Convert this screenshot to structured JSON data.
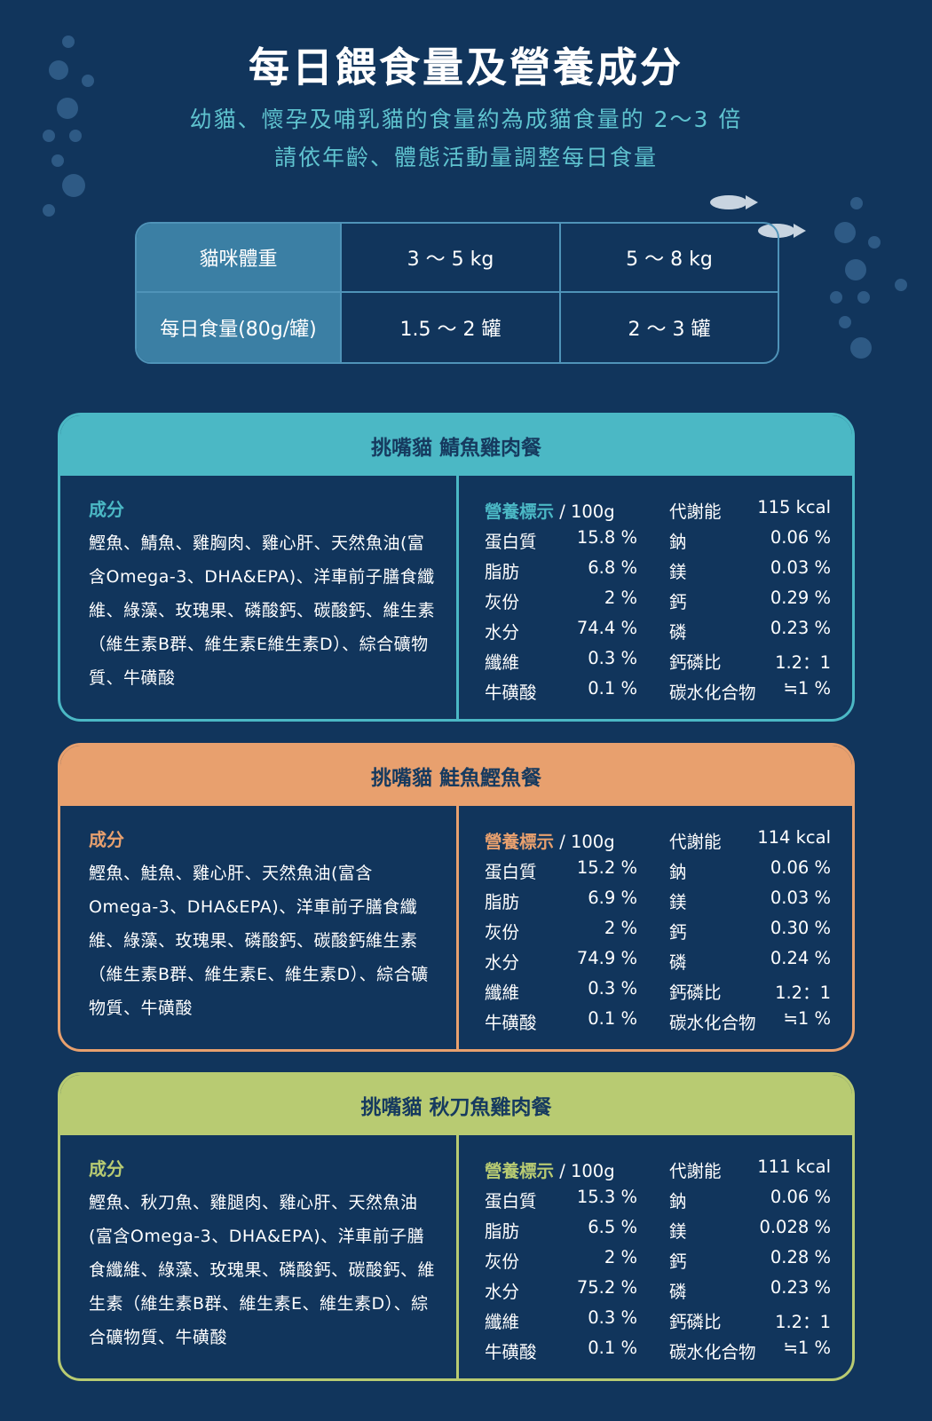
{
  "title": "每日餵食量及營養成分",
  "subtitle_1": "幼貓、懷孕及哺乳貓的食量約為成貓食量的 2～3 倍",
  "subtitle_2": "請依年齡、體態活動量調整每日食量",
  "feeding_table": {
    "header": [
      "貓咪體重",
      "3 ～ 5 kg",
      "5 ～ 8 kg"
    ],
    "row": [
      "每日食量(80g/罐)",
      "1.5 ～ 2 罐",
      "2 ～ 3 罐"
    ]
  },
  "colors": {
    "teal": "#4bb8c5",
    "orange": "#e8a06e",
    "green": "#b8cb72"
  },
  "products": [
    {
      "name": "挑嘴貓 鯖魚雞肉餐",
      "color": "#4bb8c5",
      "ingredients_label": "成分",
      "ingredients": "鰹魚、鯖魚、雞胸肉、雞心肝、天然魚油(富含Omega-3、DHA&EPA)、洋車前子膳食纖維、綠藻、玫瑰果、磷酸鈣、碳酸鈣、維生素（維生素B群、維生素E維生素D）、綜合礦物質、牛磺酸",
      "nutrition_label": "營養標示",
      "per": "/ 100g",
      "rows": [
        [
          "蛋白質",
          "15.8 %",
          "鈉",
          "0.06 %"
        ],
        [
          "脂肪",
          "6.8 %",
          "鎂",
          "0.03 %"
        ],
        [
          "灰份",
          "2 %",
          "鈣",
          "0.29 %"
        ],
        [
          "水分",
          "74.4 %",
          "磷",
          "0.23 %"
        ],
        [
          "纖維",
          "0.3 %",
          "鈣磷比",
          "1.2：1"
        ],
        [
          "牛磺酸",
          "0.1 %",
          "碳水化合物",
          "≒1 %"
        ]
      ],
      "energy_label": "代謝能",
      "energy": "115 kcal"
    },
    {
      "name": "挑嘴貓 鮭魚鰹魚餐",
      "color": "#e8a06e",
      "ingredients_label": "成分",
      "ingredients": "鰹魚、鮭魚、雞心肝、天然魚油(富含Omega-3、DHA&EPA)、洋車前子膳食纖維、綠藻、玫瑰果、磷酸鈣、碳酸鈣維生素（維生素B群、維生素E、維生素D）、綜合礦物質、牛磺酸",
      "nutrition_label": "營養標示",
      "per": "/ 100g",
      "rows": [
        [
          "蛋白質",
          "15.2 %",
          "鈉",
          "0.06 %"
        ],
        [
          "脂肪",
          "6.9 %",
          "鎂",
          "0.03 %"
        ],
        [
          "灰份",
          "2 %",
          "鈣",
          "0.30 %"
        ],
        [
          "水分",
          "74.9 %",
          "磷",
          "0.24 %"
        ],
        [
          "纖維",
          "0.3 %",
          "鈣磷比",
          "1.2：1"
        ],
        [
          "牛磺酸",
          "0.1 %",
          "碳水化合物",
          "≒1 %"
        ]
      ],
      "energy_label": "代謝能",
      "energy": "114 kcal"
    },
    {
      "name": "挑嘴貓 秋刀魚雞肉餐",
      "color": "#b8cb72",
      "ingredients_label": "成分",
      "ingredients": "鰹魚、秋刀魚、雞腿肉、雞心肝、天然魚油(富含Omega-3、DHA&EPA)、洋車前子膳食纖維、綠藻、玫瑰果、磷酸鈣、碳酸鈣、維生素（維生素B群、維生素E、維生素D）、綜合礦物質、牛磺酸",
      "nutrition_label": "營養標示",
      "per": "/ 100g",
      "rows": [
        [
          "蛋白質",
          "15.3 %",
          "鈉",
          "0.06 %"
        ],
        [
          "脂肪",
          "6.5 %",
          "鎂",
          "0.028 %"
        ],
        [
          "灰份",
          "2 %",
          "鈣",
          "0.28 %"
        ],
        [
          "水分",
          "75.2 %",
          "磷",
          "0.23 %"
        ],
        [
          "纖維",
          "0.3 %",
          "鈣磷比",
          "1.2：1"
        ],
        [
          "牛磺酸",
          "0.1 %",
          "碳水化合物",
          "≒1 %"
        ]
      ],
      "energy_label": "代謝能",
      "energy": "111 kcal"
    }
  ]
}
